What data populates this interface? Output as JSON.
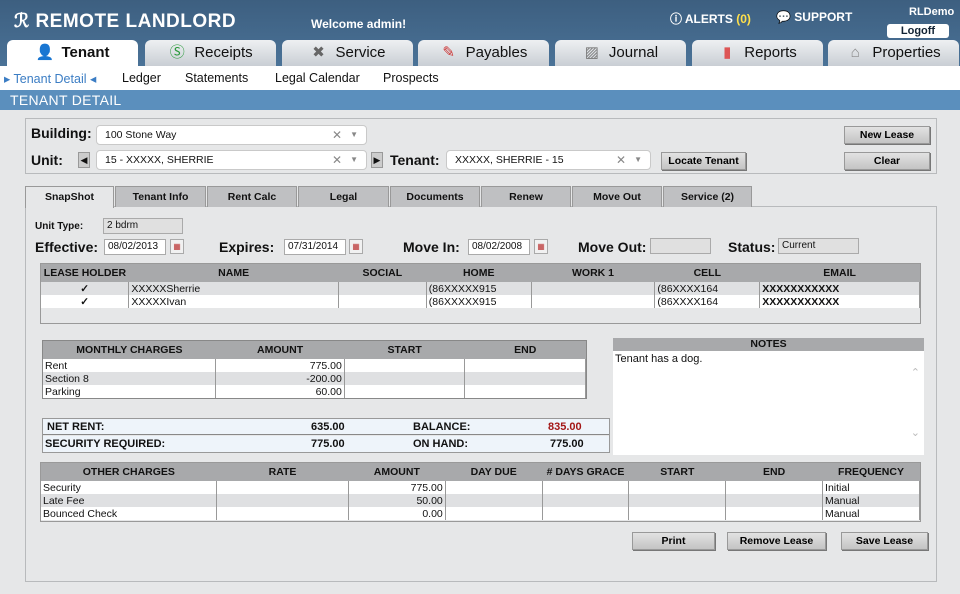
{
  "header": {
    "logo": "REMOTE LANDLORD",
    "welcome": "Welcome admin!",
    "alerts_label": "ALERTS",
    "alerts_count": "(0)",
    "support": "SUPPORT",
    "user": "RLDemo",
    "logoff": "Logoff"
  },
  "main_tabs": [
    {
      "label": "Tenant",
      "icon": "person-icon"
    },
    {
      "label": "Receipts",
      "icon": "dollar-icon"
    },
    {
      "label": "Service",
      "icon": "tools-icon"
    },
    {
      "label": "Payables",
      "icon": "pen-icon"
    },
    {
      "label": "Journal",
      "icon": "chart-icon"
    },
    {
      "label": "Reports",
      "icon": "bar-chart-icon"
    },
    {
      "label": "Properties",
      "icon": "house-icon"
    }
  ],
  "sub_nav": [
    "Tenant Detail",
    "Ledger",
    "Statements",
    "Legal Calendar",
    "Prospects"
  ],
  "page_title": "TENANT DETAIL",
  "selector": {
    "building_label": "Building:",
    "building_value": "100 Stone Way",
    "unit_label": "Unit:",
    "unit_value": "15 - XXXXX, SHERRIE",
    "tenant_label": "Tenant:",
    "tenant_value": "XXXXX, SHERRIE - 15",
    "locate": "Locate Tenant",
    "new_lease": "New Lease",
    "clear": "Clear"
  },
  "detail_tabs": [
    "SnapShot",
    "Tenant Info",
    "Rent Calc",
    "Legal",
    "Documents",
    "Renew",
    "Move Out",
    "Service (2)"
  ],
  "snapshot": {
    "unit_type_label": "Unit Type:",
    "unit_type": "2 bdrm",
    "effective_label": "Effective:",
    "effective": "08/02/2013",
    "expires_label": "Expires:",
    "expires": "07/31/2014",
    "move_in_label": "Move In:",
    "move_in": "08/02/2008",
    "move_out_label": "Move Out:",
    "move_out": "",
    "status_label": "Status:",
    "status": "Current"
  },
  "lease_holders": {
    "columns": [
      "LEASE HOLDER",
      "NAME",
      "SOCIAL",
      "HOME",
      "WORK 1",
      "CELL",
      "EMAIL"
    ],
    "rows": [
      [
        "✓",
        "XXXXXSherrie",
        "",
        "(86XXXXX915",
        "",
        "(86XXXX164",
        "XXXXXXXXXXX"
      ],
      [
        "✓",
        "XXXXXIvan",
        "",
        "(86XXXXX915",
        "",
        "(86XXXX164",
        "XXXXXXXXXXX"
      ]
    ]
  },
  "monthly": {
    "columns": [
      "MONTHLY CHARGES",
      "AMOUNT",
      "START",
      "END"
    ],
    "rows": [
      [
        "Rent",
        "775.00",
        "",
        ""
      ],
      [
        "Section 8",
        "-200.00",
        "",
        ""
      ],
      [
        "Parking",
        "60.00",
        "",
        ""
      ]
    ]
  },
  "totals": {
    "net_rent_label": "NET RENT:",
    "net_rent": "635.00",
    "balance_label": "BALANCE:",
    "balance": "835.00",
    "security_label": "SECURITY REQUIRED:",
    "security": "775.00",
    "on_hand_label": "ON HAND:",
    "on_hand": "775.00",
    "balance_color": "#a31616"
  },
  "notes": {
    "title": "NOTES",
    "text": "Tenant has a dog."
  },
  "other": {
    "columns": [
      "OTHER CHARGES",
      "RATE",
      "AMOUNT",
      "DAY DUE",
      "# DAYS GRACE",
      "START",
      "END",
      "FREQUENCY"
    ],
    "rows": [
      [
        "Security",
        "",
        "775.00",
        "",
        "",
        "",
        "",
        "Initial"
      ],
      [
        "Late Fee",
        "",
        "50.00",
        "",
        "",
        "",
        "",
        "Manual"
      ],
      [
        "Bounced Check",
        "",
        "0.00",
        "",
        "",
        "",
        "",
        "Manual"
      ]
    ]
  },
  "actions": {
    "print": "Print",
    "remove": "Remove Lease",
    "save": "Save Lease"
  }
}
